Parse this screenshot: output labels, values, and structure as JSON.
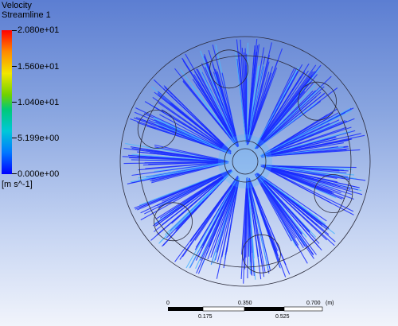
{
  "legend": {
    "title_line1": "Velocity",
    "title_line2": "Streamline 1",
    "ticks": [
      "2.080e+01",
      "1.560e+01",
      "1.040e+01",
      "5.199e+00",
      "0.000e+00"
    ],
    "unit": "[m s^-1]",
    "colors": [
      "#ff0000",
      "#ff8a00",
      "#f2e600",
      "#6fd200",
      "#00c978",
      "#00c8d8",
      "#0078ff",
      "#0000ff"
    ]
  },
  "scale_bar": {
    "top_labels": [
      "0",
      "0.350",
      "0.700"
    ],
    "unit": "(m)",
    "bottom_labels": [
      "0.175",
      "0.525"
    ]
  },
  "visual": {
    "streamline_color": "#1a2cff",
    "streamline_core_color": "#4ab6ff",
    "outline_color": "#2a2a3a",
    "blade_count": 11
  }
}
